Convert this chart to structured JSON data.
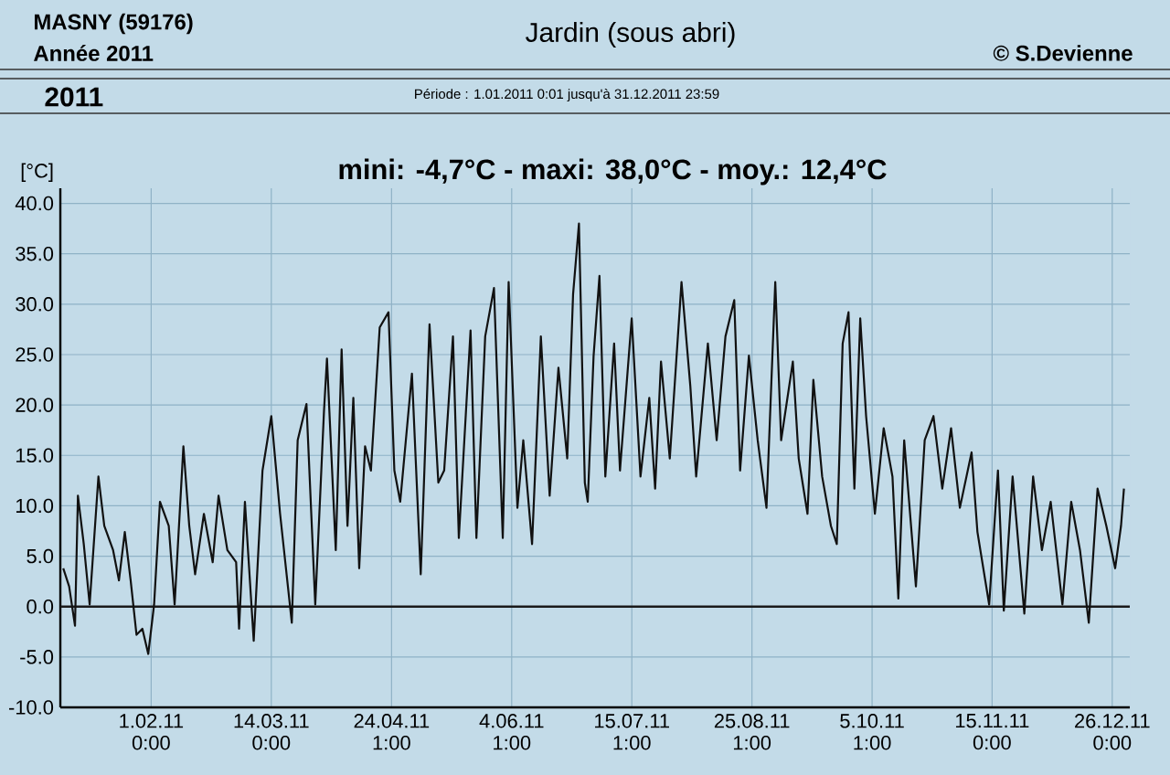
{
  "chart_data": {
    "type": "line",
    "title": "Jardin (sous abri)",
    "subtitle": "Période :  1.01.2011   0:01   jusqu'à  31.12.2011   23:59",
    "ylabel": "[°C]",
    "annotations": [
      "MASNY (59176)",
      "Année  2011",
      "© S.Devienne",
      "2011",
      "mini: -4,7°C - maxi: 38,0°C - moy.: 12,4°C"
    ],
    "series": [
      {
        "color": "#111111",
        "x": [
          "2011-01-02",
          "2011-01-04",
          "2011-01-06",
          "2011-01-07",
          "2011-01-09",
          "2011-01-11",
          "2011-01-14",
          "2011-01-16",
          "2011-01-19",
          "2011-01-21",
          "2011-01-23",
          "2011-01-25",
          "2011-01-27",
          "2011-01-29",
          "2011-01-31",
          "2011-02-02",
          "2011-02-04",
          "2011-02-07",
          "2011-02-09",
          "2011-02-12",
          "2011-02-14",
          "2011-02-16",
          "2011-02-19",
          "2011-02-22",
          "2011-02-24",
          "2011-02-27",
          "2011-03-02",
          "2011-03-03",
          "2011-03-05",
          "2011-03-08",
          "2011-03-11",
          "2011-03-14",
          "2011-03-17",
          "2011-03-21",
          "2011-03-23",
          "2011-03-26",
          "2011-03-29",
          "2011-04-01",
          "2011-04-02",
          "2011-04-05",
          "2011-04-07",
          "2011-04-09",
          "2011-04-11",
          "2011-04-13",
          "2011-04-15",
          "2011-04-17",
          "2011-04-20",
          "2011-04-23",
          "2011-04-25",
          "2011-04-27",
          "2011-05-01",
          "2011-05-04",
          "2011-05-07",
          "2011-05-10",
          "2011-05-12",
          "2011-05-15",
          "2011-05-17",
          "2011-05-21",
          "2011-05-23",
          "2011-05-26",
          "2011-05-29",
          "2011-06-01",
          "2011-06-03",
          "2011-06-06",
          "2011-06-08",
          "2011-06-11",
          "2011-06-14",
          "2011-06-17",
          "2011-06-20",
          "2011-06-23",
          "2011-06-25",
          "2011-06-27",
          "2011-06-29",
          "2011-06-30",
          "2011-07-02",
          "2011-07-04",
          "2011-07-06",
          "2011-07-09",
          "2011-07-11",
          "2011-07-15",
          "2011-07-18",
          "2011-07-21",
          "2011-07-23",
          "2011-07-25",
          "2011-07-28",
          "2011-08-01",
          "2011-08-04",
          "2011-08-06",
          "2011-08-10",
          "2011-08-13",
          "2011-08-16",
          "2011-08-19",
          "2011-08-21",
          "2011-08-24",
          "2011-08-27",
          "2011-08-30",
          "2011-09-02",
          "2011-09-04",
          "2011-09-08",
          "2011-09-10",
          "2011-09-13",
          "2011-09-15",
          "2011-09-18",
          "2011-09-21",
          "2011-09-23",
          "2011-09-25",
          "2011-09-27",
          "2011-09-29",
          "2011-10-01",
          "2011-10-03",
          "2011-10-06",
          "2011-10-09",
          "2011-10-12",
          "2011-10-14",
          "2011-10-16",
          "2011-10-20",
          "2011-10-23",
          "2011-10-26",
          "2011-10-29",
          "2011-11-01",
          "2011-11-04",
          "2011-11-08",
          "2011-11-10",
          "2011-11-14",
          "2011-11-17",
          "2011-11-19",
          "2011-11-22",
          "2011-11-26",
          "2011-11-29",
          "2011-12-02",
          "2011-12-05",
          "2011-12-09",
          "2011-12-12",
          "2011-12-15",
          "2011-12-18",
          "2011-12-21",
          "2011-12-24",
          "2011-12-27",
          "2011-12-29",
          "2011-12-30"
        ],
        "values": [
          3.8,
          2.0,
          -1.9,
          11,
          6.2,
          0.2,
          12.9,
          8,
          5.6,
          2.6,
          7.4,
          2.6,
          -2.8,
          -2.2,
          -4.7,
          0.2,
          10.4,
          8,
          0.2,
          15.9,
          8,
          3.2,
          9.2,
          4.4,
          11,
          5.6,
          4.4,
          -2.2,
          10.4,
          -3.4,
          13.5,
          18.9,
          9.2,
          -1.6,
          16.5,
          20.1,
          0.2,
          19.5,
          24.6,
          5.6,
          25.5,
          8,
          20.7,
          3.8,
          15.9,
          13.5,
          27.7,
          29.2,
          13.5,
          10.4,
          23.1,
          3.2,
          28,
          12.3,
          13.5,
          26.8,
          6.8,
          27.4,
          6.8,
          26.8,
          31.6,
          6.8,
          32.2,
          9.8,
          16.5,
          6.2,
          26.8,
          11,
          23.7,
          14.7,
          31,
          38.0,
          12.3,
          10.4,
          24.9,
          32.8,
          12.9,
          26.1,
          13.5,
          28.6,
          12.9,
          20.7,
          11.7,
          24.3,
          14.7,
          32.2,
          21.9,
          12.9,
          26.1,
          16.5,
          26.8,
          30.4,
          13.5,
          24.9,
          16.5,
          9.8,
          32.2,
          16.5,
          24.3,
          14.7,
          9.2,
          22.5,
          12.9,
          8,
          6.2,
          26.1,
          29.2,
          11.7,
          28.6,
          18.9,
          9.2,
          17.7,
          12.9,
          0.8,
          16.5,
          2,
          16.5,
          18.9,
          11.7,
          17.7,
          9.8,
          15.3,
          7.4,
          0.2,
          13.5,
          -0.4,
          12.9,
          -0.7,
          12.9,
          5.6,
          10.4,
          0.2,
          10.4,
          5.6,
          -1.6,
          11.7,
          8,
          3.8,
          8,
          11.7
        ]
      }
    ],
    "xlim": [
      "2011-01-01T00:00",
      "2012-01-01T00:00"
    ],
    "ylim": [
      -10,
      41.5
    ],
    "xticks": [
      {
        "value": "2011-02-01T00:00",
        "label": "1.02.11 0:00"
      },
      {
        "value": "2011-03-14T00:00",
        "label": "14.03.11 0:00"
      },
      {
        "value": "2011-04-24T01:00",
        "label": "24.04.11 1:00"
      },
      {
        "value": "2011-06-04T01:00",
        "label": "4.06.11 1:00"
      },
      {
        "value": "2011-07-15T01:00",
        "label": "15.07.11 1:00"
      },
      {
        "value": "2011-08-25T01:00",
        "label": "25.08.11 1:00"
      },
      {
        "value": "2011-10-05T01:00",
        "label": "5.10.11 1:00"
      },
      {
        "value": "2011-11-15T00:00",
        "label": "15.11.11 0:00"
      },
      {
        "value": "2011-12-26T00:00",
        "label": "26.12.11 0:00"
      }
    ],
    "yticks": [
      {
        "value": -10,
        "label": "-10.0"
      },
      {
        "value": -5,
        "label": "-5.0"
      },
      {
        "value": 0,
        "label": "0.0"
      },
      {
        "value": 5,
        "label": "5.0"
      },
      {
        "value": 10,
        "label": "10.0"
      },
      {
        "value": 15,
        "label": "15.0"
      },
      {
        "value": 20,
        "label": "20.0"
      },
      {
        "value": 25,
        "label": "25.0"
      },
      {
        "value": 30,
        "label": "30.0"
      },
      {
        "value": 35,
        "label": "35.0"
      },
      {
        "value": 40,
        "label": "40.0"
      }
    ],
    "grid": true,
    "ref_lines": [
      {
        "axis": "y",
        "value": 0,
        "color": "#1a1a1a"
      }
    ]
  }
}
